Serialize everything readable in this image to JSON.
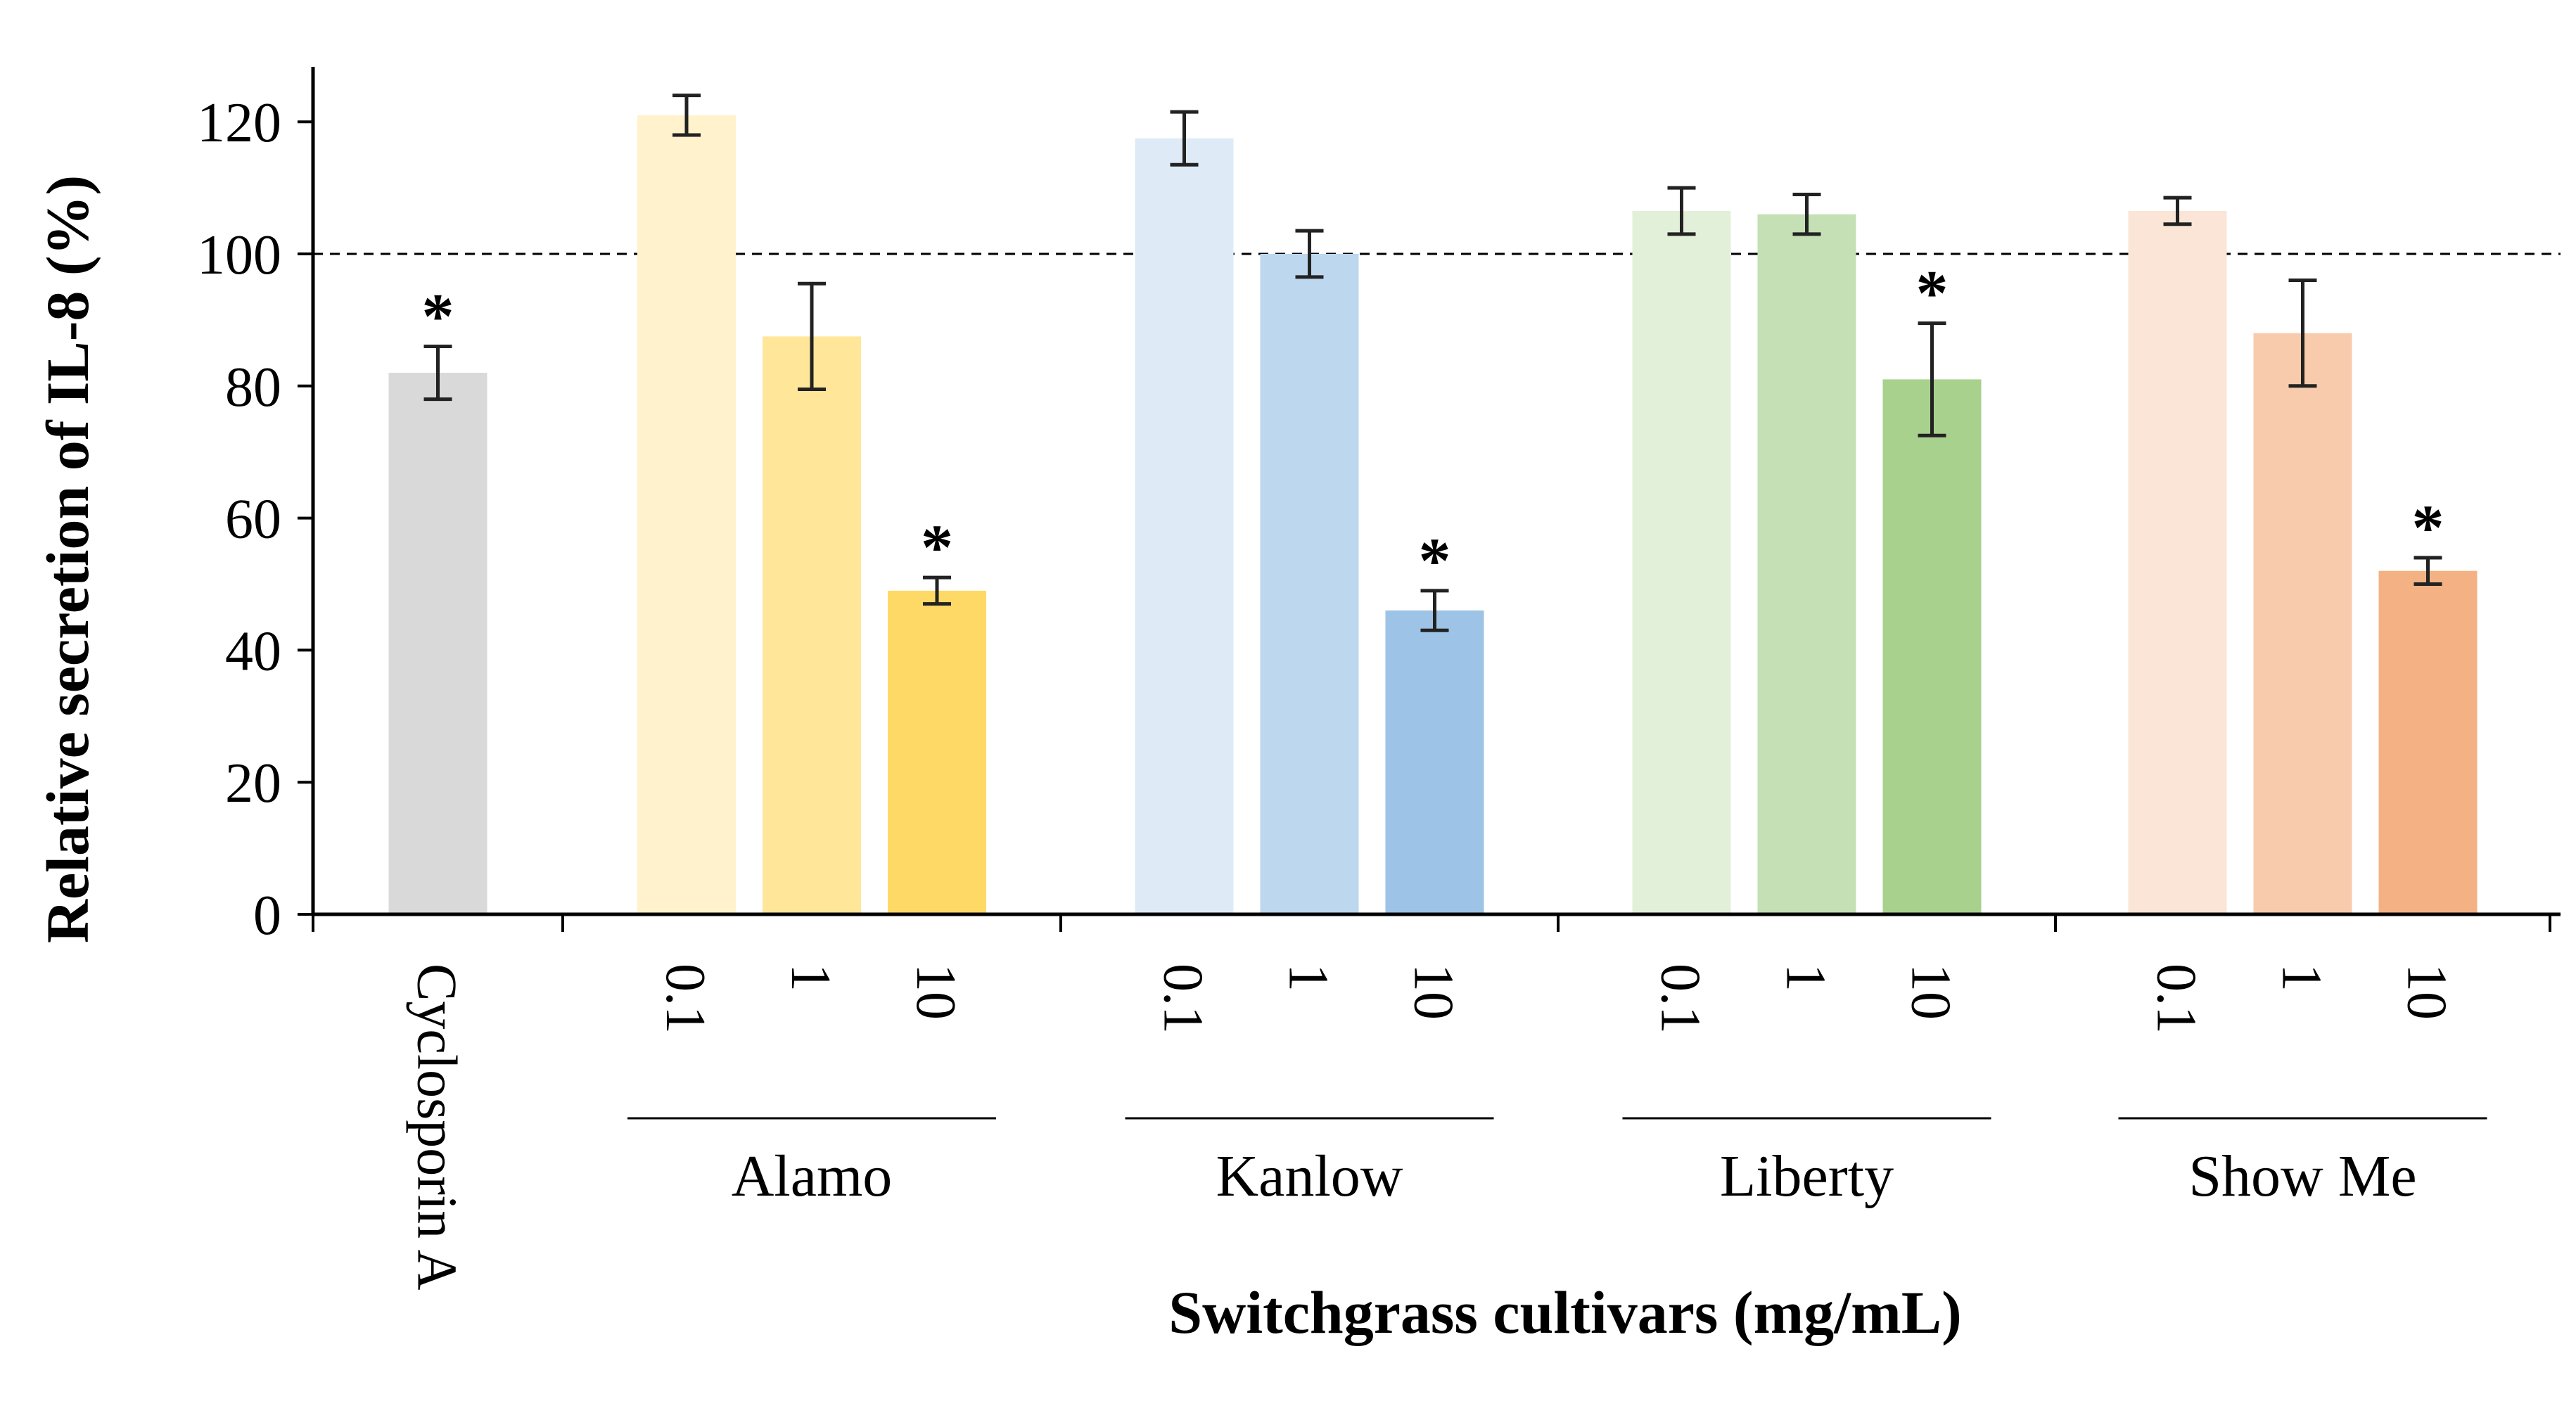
{
  "chart_data": {
    "type": "bar",
    "title": "",
    "xlabel": "Switchgrass cultivars (mg/mL)",
    "ylabel": "Relative secretion of IL-8 (%)",
    "ylim": [
      0,
      130
    ],
    "yticks": [
      0,
      20,
      40,
      60,
      80,
      100,
      120
    ],
    "reference_line": 100,
    "groups": [
      {
        "name": "Cyclosporin A",
        "show_group_label": false,
        "bars": [
          {
            "label": "Cyclosporin A",
            "value": 82,
            "error": 4,
            "significant": true,
            "color": "#d9d9d9"
          }
        ]
      },
      {
        "name": "Alamo",
        "show_group_label": true,
        "bars": [
          {
            "label": "0.1",
            "value": 121,
            "error": 3,
            "significant": false,
            "color": "#fff2cc"
          },
          {
            "label": "1",
            "value": 87.5,
            "error": 8,
            "significant": false,
            "color": "#ffe699"
          },
          {
            "label": "10",
            "value": 49,
            "error": 2,
            "significant": true,
            "color": "#ffd966"
          }
        ]
      },
      {
        "name": "Kanlow",
        "show_group_label": true,
        "bars": [
          {
            "label": "0.1",
            "value": 117.5,
            "error": 4,
            "significant": false,
            "color": "#deebf7"
          },
          {
            "label": "1",
            "value": 100,
            "error": 3.5,
            "significant": false,
            "color": "#bdd7ee"
          },
          {
            "label": "10",
            "value": 46,
            "error": 3,
            "significant": true,
            "color": "#9dc3e6"
          }
        ]
      },
      {
        "name": "Liberty",
        "show_group_label": true,
        "bars": [
          {
            "label": "0.1",
            "value": 106.5,
            "error": 3.5,
            "significant": false,
            "color": "#e2f0d9"
          },
          {
            "label": "1",
            "value": 106,
            "error": 3,
            "significant": false,
            "color": "#c5e0b4"
          },
          {
            "label": "10",
            "value": 81,
            "error": 8.5,
            "significant": true,
            "color": "#a9d18e"
          }
        ]
      },
      {
        "name": "Show Me",
        "show_group_label": true,
        "bars": [
          {
            "label": "0.1",
            "value": 106.5,
            "error": 2,
            "significant": false,
            "color": "#fbe5d6"
          },
          {
            "label": "1",
            "value": 88,
            "error": 8,
            "significant": false,
            "color": "#f8cbad"
          },
          {
            "label": "10",
            "value": 52,
            "error": 2,
            "significant": true,
            "color": "#f4b183"
          }
        ]
      }
    ],
    "significance_marker": "*"
  }
}
